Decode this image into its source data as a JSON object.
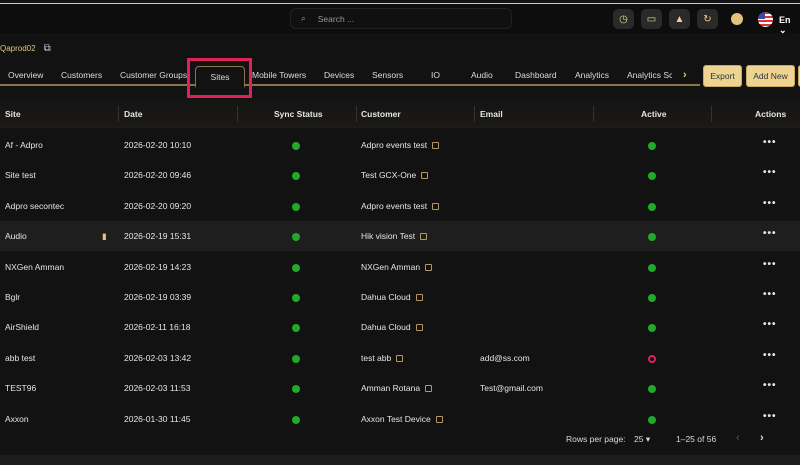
{
  "header": {
    "search_placeholder": "Search ...",
    "language": "En",
    "icons": [
      "clock-icon",
      "monitor-icon",
      "user-icon",
      "refresh-icon"
    ]
  },
  "org": {
    "name": "Qaprod02"
  },
  "tabs": [
    "Overview",
    "Customers",
    "Customer Groups",
    "Sites",
    "Mobile Towers",
    "Devices",
    "Sensors",
    "IO",
    "Audio",
    "Dashboard",
    "Analytics",
    "Analytics Sc"
  ],
  "active_tab": "Sites",
  "actions": {
    "export": "Export",
    "add_new": "Add New"
  },
  "table": {
    "columns": [
      "Site",
      "Date",
      "Sync Status",
      "Customer",
      "Email",
      "Active",
      "Actions"
    ],
    "rows": [
      {
        "site": "Af - Adpro",
        "date": "2026-02-20 10:10",
        "sync": "ok",
        "customer": "Adpro events test",
        "email": "",
        "active": "ok"
      },
      {
        "site": "Site test",
        "date": "2026-02-20 09:46",
        "sync": "ok",
        "customer": "Test GCX-One",
        "email": "",
        "active": "ok"
      },
      {
        "site": "Adpro secontec",
        "date": "2026-02-20 09:20",
        "sync": "ok",
        "customer": "Adpro events test",
        "email": "",
        "active": "ok"
      },
      {
        "site": "Audio",
        "date": "2026-02-19 15:31",
        "sync": "ok",
        "customer": "Hik vision Test",
        "email": "",
        "active": "ok",
        "copy_icon": true
      },
      {
        "site": "NXGen Amman",
        "date": "2026-02-19 14:23",
        "sync": "ok",
        "customer": "NXGen Amman",
        "email": "",
        "active": "ok"
      },
      {
        "site": "Bglr",
        "date": "2026-02-19 03:39",
        "sync": "ok",
        "customer": "Dahua Cloud",
        "email": "",
        "active": "ok"
      },
      {
        "site": "AirShield",
        "date": "2026-02-11 16:18",
        "sync": "ok",
        "customer": "Dahua Cloud",
        "email": "",
        "active": "ok"
      },
      {
        "site": "abb test",
        "date": "2026-02-03 13:42",
        "sync": "ok",
        "customer": "test abb",
        "email": "add@ss.com",
        "active": "inactive"
      },
      {
        "site": "TEST96",
        "date": "2026-02-03 11:53",
        "sync": "ok",
        "customer": "Amman Rotana",
        "email": "Test@gmail.com",
        "active": "ok"
      },
      {
        "site": "Axxon",
        "date": "2026-01-30 11:45",
        "sync": "ok",
        "customer": "Axxon Test Device",
        "email": "",
        "active": "ok"
      }
    ]
  },
  "pagination": {
    "rows_per_page_label": "Rows per page:",
    "rows_per_page": "25",
    "range": "1–25 of 56"
  },
  "colors": {
    "accent": "#edd493",
    "ok": "#1faa2a",
    "inactive": "#e0215a"
  }
}
